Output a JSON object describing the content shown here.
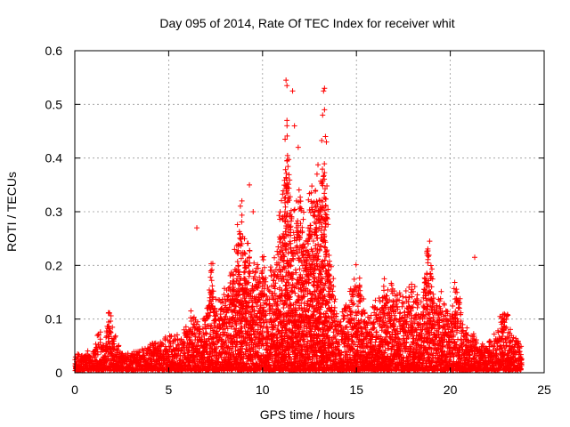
{
  "chart_data": {
    "type": "scatter",
    "title": "Day 095 of 2014, Rate Of TEC Index for receiver whit",
    "xlabel": "GPS time / hours",
    "ylabel": "ROTI / TECUs",
    "xlim": [
      0,
      25
    ],
    "ylim": [
      0,
      0.6
    ],
    "x_ticks": [
      "0",
      "5",
      "10",
      "15",
      "20",
      "25"
    ],
    "y_ticks": [
      "0",
      "0.1",
      "0.2",
      "0.3",
      "0.4",
      "0.5",
      "0.6"
    ],
    "grid": true,
    "marker": "+",
    "color": "#ff0000",
    "envelope": {
      "description": "approximate upper envelope of the dense scatter cloud (hours, ROTI)",
      "points": [
        [
          0,
          0.03
        ],
        [
          0.5,
          0.03
        ],
        [
          1,
          0.04
        ],
        [
          1.3,
          0.07
        ],
        [
          1.6,
          0.05
        ],
        [
          1.8,
          0.12
        ],
        [
          2.1,
          0.07
        ],
        [
          2.5,
          0.03
        ],
        [
          3,
          0.03
        ],
        [
          3.5,
          0.04
        ],
        [
          4,
          0.05
        ],
        [
          4.5,
          0.05
        ],
        [
          5,
          0.07
        ],
        [
          5.5,
          0.06
        ],
        [
          6,
          0.08
        ],
        [
          6.3,
          0.11
        ],
        [
          6.7,
          0.08
        ],
        [
          7,
          0.11
        ],
        [
          7.3,
          0.19
        ],
        [
          7.6,
          0.12
        ],
        [
          8,
          0.14
        ],
        [
          8.5,
          0.2
        ],
        [
          8.8,
          0.28
        ],
        [
          9,
          0.25
        ],
        [
          9.5,
          0.18
        ],
        [
          10,
          0.2
        ],
        [
          10.3,
          0.15
        ],
        [
          10.7,
          0.22
        ],
        [
          11,
          0.3
        ],
        [
          11.3,
          0.42
        ],
        [
          11.6,
          0.27
        ],
        [
          12,
          0.33
        ],
        [
          12.3,
          0.25
        ],
        [
          12.6,
          0.32
        ],
        [
          13,
          0.34
        ],
        [
          13.3,
          0.42
        ],
        [
          13.6,
          0.2
        ],
        [
          14,
          0.09
        ],
        [
          14.5,
          0.12
        ],
        [
          15,
          0.19
        ],
        [
          15.5,
          0.1
        ],
        [
          16,
          0.12
        ],
        [
          16.5,
          0.16
        ],
        [
          17,
          0.14
        ],
        [
          17.5,
          0.13
        ],
        [
          18,
          0.16
        ],
        [
          18.5,
          0.12
        ],
        [
          18.8,
          0.24
        ],
        [
          19.2,
          0.12
        ],
        [
          19.6,
          0.14
        ],
        [
          20,
          0.1
        ],
        [
          20.3,
          0.17
        ],
        [
          20.7,
          0.09
        ],
        [
          21,
          0.07
        ],
        [
          21.5,
          0.05
        ],
        [
          22,
          0.05
        ],
        [
          22.5,
          0.07
        ],
        [
          22.8,
          0.12
        ],
        [
          23.3,
          0.07
        ],
        [
          23.8,
          0.06
        ]
      ]
    },
    "outliers": [
      [
        11.25,
        0.545
      ],
      [
        11.3,
        0.535
      ],
      [
        11.6,
        0.525
      ],
      [
        13.25,
        0.525
      ],
      [
        13.3,
        0.53
      ],
      [
        11.3,
        0.47
      ],
      [
        13.2,
        0.48
      ],
      [
        13.3,
        0.49
      ],
      [
        11.7,
        0.46
      ],
      [
        11.2,
        0.435
      ],
      [
        13.35,
        0.44
      ],
      [
        13.4,
        0.43
      ],
      [
        11.9,
        0.42
      ],
      [
        12.9,
        0.37
      ],
      [
        9.3,
        0.35
      ],
      [
        8.9,
        0.32
      ],
      [
        9.5,
        0.3
      ],
      [
        21.3,
        0.215
      ],
      [
        18.9,
        0.245
      ],
      [
        6.5,
        0.27
      ]
    ]
  }
}
